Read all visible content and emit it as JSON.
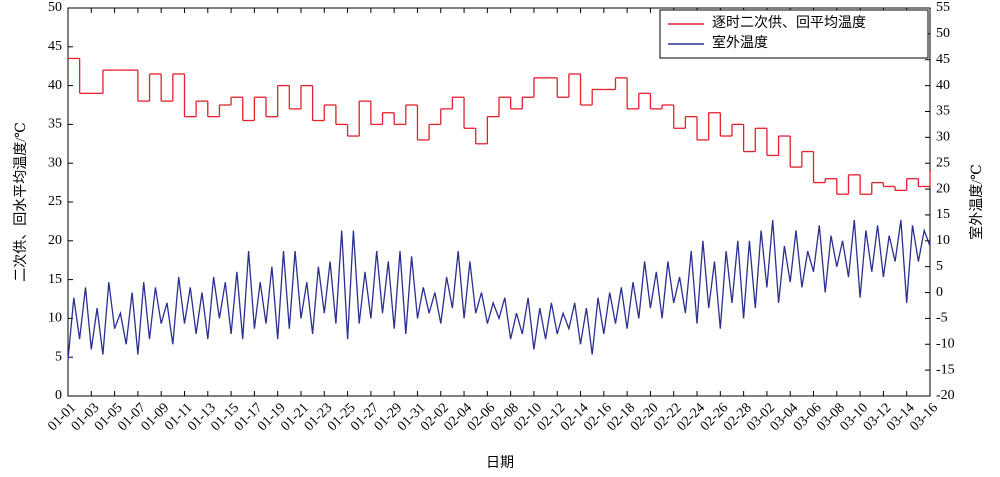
{
  "chart_data": {
    "type": "line",
    "xlabel": "日期",
    "ylabel": "二次供、回水平均温度/℃",
    "y2label": "室外温度/℃",
    "xlim": [
      0,
      74
    ],
    "ylim": [
      0,
      50
    ],
    "y2lim": [
      -20,
      55
    ],
    "xticks": [
      {
        "value": 0,
        "label": "01-01"
      },
      {
        "value": 2,
        "label": "01-03"
      },
      {
        "value": 4,
        "label": "01-05"
      },
      {
        "value": 6,
        "label": "01-07"
      },
      {
        "value": 8,
        "label": "01-09"
      },
      {
        "value": 10,
        "label": "01-11"
      },
      {
        "value": 12,
        "label": "01-13"
      },
      {
        "value": 14,
        "label": "01-15"
      },
      {
        "value": 16,
        "label": "01-17"
      },
      {
        "value": 18,
        "label": "01-19"
      },
      {
        "value": 20,
        "label": "01-21"
      },
      {
        "value": 22,
        "label": "01-23"
      },
      {
        "value": 24,
        "label": "01-25"
      },
      {
        "value": 26,
        "label": "01-27"
      },
      {
        "value": 28,
        "label": "01-29"
      },
      {
        "value": 30,
        "label": "01-31"
      },
      {
        "value": 32,
        "label": "02-02"
      },
      {
        "value": 34,
        "label": "02-04"
      },
      {
        "value": 36,
        "label": "02-06"
      },
      {
        "value": 38,
        "label": "02-08"
      },
      {
        "value": 40,
        "label": "02-10"
      },
      {
        "value": 42,
        "label": "02-12"
      },
      {
        "value": 44,
        "label": "02-14"
      },
      {
        "value": 46,
        "label": "02-16"
      },
      {
        "value": 48,
        "label": "02-18"
      },
      {
        "value": 50,
        "label": "02-20"
      },
      {
        "value": 52,
        "label": "02-22"
      },
      {
        "value": 54,
        "label": "02-24"
      },
      {
        "value": 56,
        "label": "02-26"
      },
      {
        "value": 58,
        "label": "02-28"
      },
      {
        "value": 60,
        "label": "03-02"
      },
      {
        "value": 62,
        "label": "03-04"
      },
      {
        "value": 64,
        "label": "03-06"
      },
      {
        "value": 66,
        "label": "03-08"
      },
      {
        "value": 68,
        "label": "03-10"
      },
      {
        "value": 70,
        "label": "03-12"
      },
      {
        "value": 72,
        "label": "03-14"
      },
      {
        "value": 74,
        "label": "03-16"
      }
    ],
    "yticks": [
      0,
      5,
      10,
      15,
      20,
      25,
      30,
      35,
      40,
      45,
      50
    ],
    "y2ticks": [
      -20,
      -15,
      -10,
      -5,
      0,
      5,
      10,
      15,
      20,
      25,
      30,
      35,
      40,
      45,
      50,
      55
    ],
    "legend": "upper right",
    "series": [
      {
        "name": "逐时二次供、回平均温度",
        "color": "#e3202b",
        "step": true,
        "x": [
          0,
          1,
          2,
          3,
          4,
          5,
          6,
          7,
          8,
          9,
          10,
          11,
          12,
          13,
          14,
          15,
          16,
          17,
          18,
          19,
          20,
          21,
          22,
          23,
          24,
          25,
          26,
          27,
          28,
          29,
          30,
          31,
          32,
          33,
          34,
          35,
          36,
          37,
          38,
          39,
          40,
          41,
          42,
          43,
          44,
          45,
          46,
          47,
          48,
          49,
          50,
          51,
          52,
          53,
          54,
          55,
          56,
          57,
          58,
          59,
          60,
          61,
          62,
          63,
          64,
          65,
          66,
          67,
          68,
          69,
          70,
          71,
          72,
          73,
          74
        ],
        "values": [
          43.5,
          39,
          39,
          42,
          42,
          42,
          38,
          41.5,
          38,
          41.5,
          36,
          38,
          36,
          37.5,
          38.5,
          35.5,
          38.5,
          36,
          40,
          37,
          40,
          35.5,
          37.5,
          35,
          33.5,
          38,
          35,
          36.5,
          35,
          37.5,
          33,
          35,
          37,
          38.5,
          34.5,
          32.5,
          36,
          38.5,
          37,
          38.5,
          41,
          41,
          38.5,
          41.5,
          37.5,
          39.5,
          39.5,
          41,
          37,
          39,
          37,
          37.5,
          34.5,
          36,
          33,
          36.5,
          33.5,
          35,
          31.5,
          34.5,
          31,
          33.5,
          29.5,
          31.5,
          27.5,
          28,
          26,
          28.5,
          26,
          27.5,
          27,
          26.5,
          28,
          27,
          29
        ]
      },
      {
        "name": "室外温度",
        "color": "#2a2f90",
        "axis": "y2",
        "x": [
          0,
          0.5,
          1,
          1.5,
          2,
          2.5,
          3,
          3.5,
          4,
          4.5,
          5,
          5.5,
          6,
          6.5,
          7,
          7.5,
          8,
          8.5,
          9,
          9.5,
          10,
          10.5,
          11,
          11.5,
          12,
          12.5,
          13,
          13.5,
          14,
          14.5,
          15,
          15.5,
          16,
          16.5,
          17,
          17.5,
          18,
          18.5,
          19,
          19.5,
          20,
          20.5,
          21,
          21.5,
          22,
          22.5,
          23,
          23.5,
          24,
          24.5,
          25,
          25.5,
          26,
          26.5,
          27,
          27.5,
          28,
          28.5,
          29,
          29.5,
          30,
          30.5,
          31,
          31.5,
          32,
          32.5,
          33,
          33.5,
          34,
          34.5,
          35,
          35.5,
          36,
          36.5,
          37,
          37.5,
          38,
          38.5,
          39,
          39.5,
          40,
          40.5,
          41,
          41.5,
          42,
          42.5,
          43,
          43.5,
          44,
          44.5,
          45,
          45.5,
          46,
          46.5,
          47,
          47.5,
          48,
          48.5,
          49,
          49.5,
          50,
          50.5,
          51,
          51.5,
          52,
          52.5,
          53,
          53.5,
          54,
          54.5,
          55,
          55.5,
          56,
          56.5,
          57,
          57.5,
          58,
          58.5,
          59,
          59.5,
          60,
          60.5,
          61,
          61.5,
          62,
          62.5,
          63,
          63.5,
          64,
          64.5,
          65,
          65.5,
          66,
          66.5,
          67,
          67.5,
          68,
          68.5,
          69,
          69.5,
          70,
          70.5,
          71,
          71.5,
          72,
          72.5,
          73,
          73.5,
          74
        ],
        "values": [
          -13,
          -1,
          -9,
          1,
          -11,
          -3,
          -12,
          2,
          -7,
          -4,
          -10,
          0,
          -12,
          2,
          -9,
          1,
          -6,
          -2,
          -10,
          3,
          -6,
          1,
          -8,
          0,
          -9,
          3,
          -5,
          2,
          -8,
          4,
          -9,
          8,
          -7,
          2,
          -6,
          5,
          -9,
          8,
          -7,
          8,
          -5,
          2,
          -8,
          5,
          -4,
          6,
          -6,
          12,
          -9,
          12,
          -6,
          4,
          -5,
          8,
          -4,
          6,
          -7,
          8,
          -8,
          7,
          -5,
          1,
          -4,
          0,
          -6,
          3,
          -3,
          8,
          -5,
          6,
          -4,
          0,
          -6,
          -2,
          -5,
          -1,
          -9,
          -4,
          -8,
          -1,
          -11,
          -3,
          -9,
          -2,
          -8,
          -4,
          -7,
          -2,
          -10,
          -3,
          -12,
          -1,
          -8,
          0,
          -6,
          1,
          -7,
          2,
          -5,
          6,
          -3,
          4,
          -5,
          6,
          -2,
          3,
          -4,
          8,
          -6,
          10,
          -3,
          6,
          -7,
          8,
          -2,
          10,
          -5,
          10,
          -3,
          12,
          1,
          14,
          -2,
          9,
          2,
          12,
          1,
          8,
          4,
          13,
          0,
          11,
          5,
          10,
          3,
          14,
          -1,
          12,
          4,
          13,
          3,
          11,
          6,
          14,
          -2,
          13,
          6,
          12,
          9
        ]
      }
    ]
  }
}
